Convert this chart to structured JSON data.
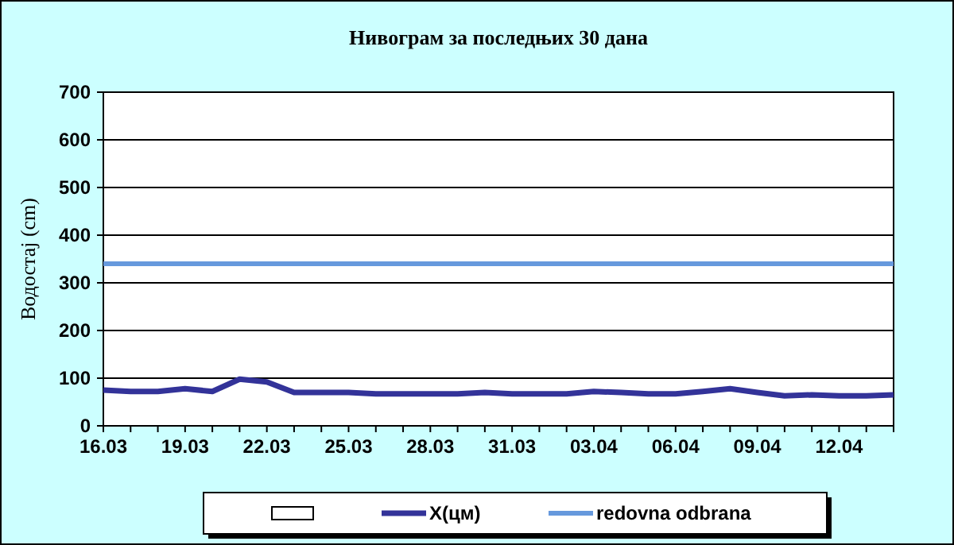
{
  "chart_data": {
    "type": "line",
    "title": "Нивограм за последњих 30 дана",
    "ylabel": "Водостај (cm)",
    "categories": [
      "16.03",
      null,
      null,
      "19.03",
      null,
      null,
      "22.03",
      null,
      null,
      "25.03",
      null,
      null,
      "28.03",
      null,
      null,
      "31.03",
      null,
      null,
      "03.04",
      null,
      null,
      "06.04",
      null,
      null,
      "09.04",
      null,
      null,
      "12.04",
      null,
      null
    ],
    "series": [
      {
        "name": "X(цм)",
        "color": "#333399",
        "values": [
          75,
          72,
          72,
          78,
          72,
          98,
          92,
          70,
          70,
          70,
          67,
          67,
          67,
          67,
          70,
          67,
          67,
          67,
          72,
          70,
          67,
          67,
          72,
          78,
          70,
          63,
          65,
          63,
          63,
          65
        ]
      }
    ],
    "ref_lines": [
      {
        "axis": "y",
        "value": 340,
        "label": "redovna odbrana",
        "color": "#6699dd"
      }
    ],
    "ylim": [
      0,
      700
    ],
    "yticks": [
      0,
      100,
      200,
      300,
      400,
      500,
      600,
      700
    ],
    "grid": "y",
    "legend": "bottom",
    "marker": "none",
    "line_style": "solid"
  }
}
